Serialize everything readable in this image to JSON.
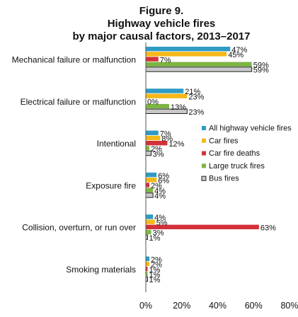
{
  "chart_data": {
    "type": "bar",
    "orientation": "horizontal",
    "title": [
      "Figure 9.",
      "Highway vehicle fires",
      "by major causal factors, 2013–2017"
    ],
    "categories": [
      "Mechanical failure or malfunction",
      "Electrical failure or malfunction",
      "Intentional",
      "Exposure fire",
      "Collision, overturn, or run over",
      "Smoking materials"
    ],
    "series": [
      {
        "name": "All highway vehicle fires",
        "color": "#2e9bc4",
        "values": [
          47,
          21,
          7,
          6,
          4,
          2
        ]
      },
      {
        "name": "Car fires",
        "color": "#f5b818",
        "values": [
          45,
          23,
          8,
          6,
          5,
          2
        ]
      },
      {
        "name": "Car fire deaths",
        "color": "#d3313a",
        "values": [
          7,
          0,
          12,
          2,
          63,
          1
        ]
      },
      {
        "name": "Large truck fires",
        "color": "#7db543",
        "values": [
          59,
          13,
          2,
          4,
          3,
          1
        ]
      },
      {
        "name": "Bus fires",
        "color": "#c8c8c8",
        "values": [
          59,
          23,
          3,
          4,
          1,
          1
        ]
      }
    ],
    "value_suffix": "%",
    "xlim": [
      0,
      80
    ],
    "xticks": [
      "0%",
      "20%",
      "40%",
      "60%",
      "80%"
    ],
    "legend_position": "right"
  }
}
